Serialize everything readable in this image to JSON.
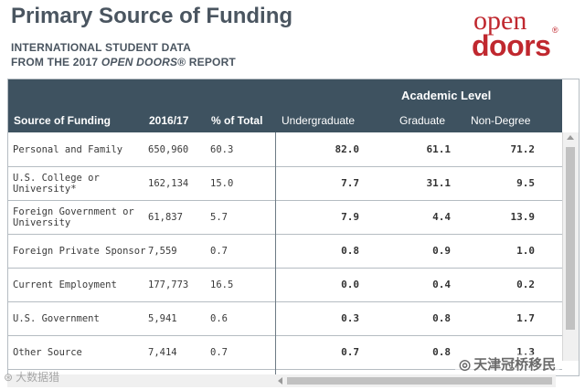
{
  "header": {
    "title": "Primary Source of Funding",
    "subtitle_line1": "INTERNATIONAL STUDENT DATA",
    "subtitle_line2_pre": "FROM THE 2017 ",
    "subtitle_line2_italic": "OPEN DOORS",
    "subtitle_line2_post": "® REPORT"
  },
  "logo": {
    "top": "open",
    "bottom": "doors",
    "reg": "®",
    "color": "#c0282f"
  },
  "table": {
    "group_header": "Academic Level",
    "columns": {
      "source": "Source of Funding",
      "year": "2016/17",
      "pct": "% of Total",
      "undergrad": "Undergraduate",
      "graduate": "Graduate",
      "nondegree": "Non-Degree"
    },
    "rows": [
      {
        "source": "Personal and Family",
        "year": "650,960",
        "pct": "60.3",
        "undergrad": "82.0",
        "graduate": "61.1",
        "nondegree": "71.2"
      },
      {
        "source": "U.S. College or University*",
        "year": "162,134",
        "pct": "15.0",
        "undergrad": "7.7",
        "graduate": "31.1",
        "nondegree": "9.5"
      },
      {
        "source": "Foreign Government or University",
        "year": "61,837",
        "pct": "5.7",
        "undergrad": "7.9",
        "graduate": "4.4",
        "nondegree": "13.9"
      },
      {
        "source": "Foreign Private Sponsor",
        "year": "7,559",
        "pct": "0.7",
        "undergrad": "0.8",
        "graduate": "0.9",
        "nondegree": "1.0"
      },
      {
        "source": "Current Employment",
        "year": "177,773",
        "pct": "16.5",
        "undergrad": "0.0",
        "graduate": "0.4",
        "nondegree": "0.2"
      },
      {
        "source": "U.S. Government",
        "year": "5,941",
        "pct": "0.6",
        "undergrad": "0.3",
        "graduate": "0.8",
        "nondegree": "1.7"
      },
      {
        "source": "Other Source",
        "year": "7,414",
        "pct": "0.7",
        "undergrad": "0.7",
        "graduate": "0.8",
        "nondegree": "1.3"
      }
    ]
  },
  "watermarks": {
    "left": "大数据猎",
    "right": "天津冠桥移民"
  },
  "colors": {
    "header_bg": "#3e5260",
    "title": "#4a5560"
  }
}
